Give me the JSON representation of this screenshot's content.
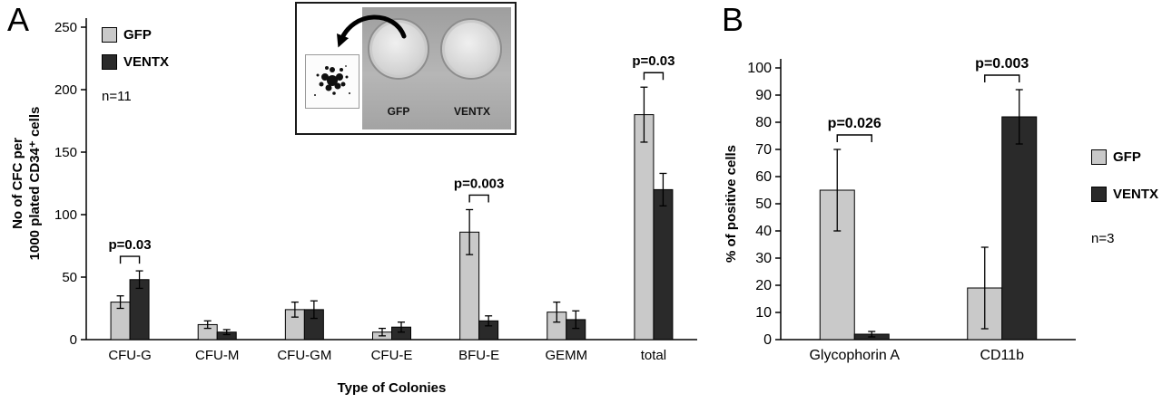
{
  "panel_a": {
    "label": "A",
    "legend": {
      "items": [
        {
          "label": "GFP"
        },
        {
          "label": "VENTX"
        }
      ],
      "n_label": "n=11"
    },
    "inset": {
      "left_plate_label": "GFP",
      "right_plate_label": "VENTX"
    }
  },
  "panel_b": {
    "label": "B",
    "legend": {
      "items": [
        {
          "label": "GFP"
        },
        {
          "label": "VENTX"
        }
      ],
      "n_label": "n=3"
    }
  },
  "colors": {
    "gfp": "#c9c9c9",
    "ventx": "#2a2a2a"
  },
  "chart_data": [
    {
      "type": "bar",
      "panel": "A",
      "title": "",
      "xlabel": "Type of Colonies",
      "ylabel": "No of CFC per 1000 plated CD34⁺ cells",
      "ylabel_lines": [
        "No of CFC per",
        "1000 plated CD34⁺ cells"
      ],
      "ylim": [
        0,
        250
      ],
      "ytick_step": 50,
      "grid": false,
      "legend_position": "top-left-inside",
      "n_label": "n=11",
      "categories": [
        "CFU-G",
        "CFU-M",
        "CFU-GM",
        "CFU-E",
        "BFU-E",
        "GEMM",
        "total"
      ],
      "series": [
        {
          "name": "GFP",
          "color": "#c9c9c9",
          "values": [
            30,
            12,
            24,
            6,
            86,
            22,
            180
          ],
          "errors": [
            5,
            3,
            6,
            3,
            18,
            8,
            22
          ]
        },
        {
          "name": "VENTX",
          "color": "#2a2a2a",
          "values": [
            48,
            6,
            24,
            10,
            15,
            16,
            120
          ],
          "errors": [
            7,
            2,
            7,
            4,
            4,
            7,
            13
          ]
        }
      ],
      "annotations": [
        {
          "category": "CFU-G",
          "text": "p=0.03"
        },
        {
          "category": "BFU-E",
          "text": "p=0.003"
        },
        {
          "category": "total",
          "text": "p=0.03"
        }
      ]
    },
    {
      "type": "bar",
      "panel": "B",
      "title": "",
      "xlabel": "",
      "ylabel": "% of positive cells",
      "ylabel_lines": [
        "% of positive cells"
      ],
      "ylim": [
        0,
        100
      ],
      "ytick_step": 10,
      "grid": false,
      "legend_position": "right-outside",
      "n_label": "n=3",
      "categories": [
        "Glycophorin A",
        "CD11b"
      ],
      "series": [
        {
          "name": "GFP",
          "color": "#c9c9c9",
          "values": [
            55,
            19
          ],
          "errors": [
            15,
            15
          ]
        },
        {
          "name": "VENTX",
          "color": "#2a2a2a",
          "values": [
            2,
            82
          ],
          "errors": [
            1,
            10
          ]
        }
      ],
      "annotations": [
        {
          "category": "Glycophorin A",
          "text": "p=0.026"
        },
        {
          "category": "CD11b",
          "text": "p=0.003"
        }
      ]
    }
  ]
}
